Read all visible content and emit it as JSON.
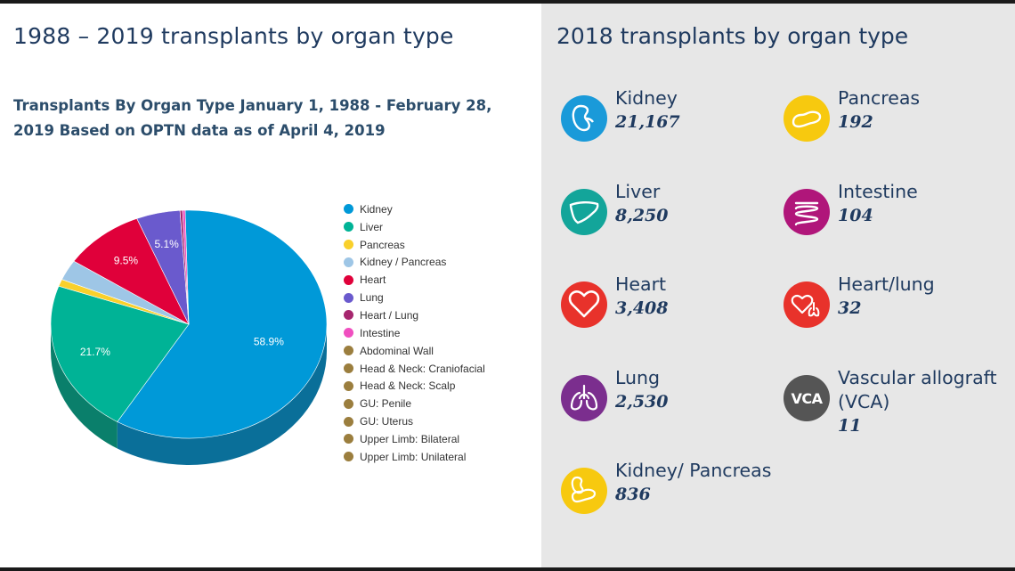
{
  "left": {
    "title": "1988 – 2019 transplants by organ type",
    "chart_title": "Transplants By Organ Type January 1, 1988 - February 28, 2019 Based on OPTN data as of April 4, 2019"
  },
  "chart_data": {
    "type": "pie",
    "title": "Transplants By Organ Type January 1, 1988 - February 28, 2019 Based on OPTN data as of April 4, 2019",
    "legend_position": "right",
    "slices": [
      {
        "label": "Kidney",
        "value": 58.9,
        "color": "#0099d8",
        "side": "#0a6f99",
        "data_label": "58.9%"
      },
      {
        "label": "Liver",
        "value": 21.7,
        "color": "#00b396",
        "side": "#0a7f6b",
        "data_label": "21.7%"
      },
      {
        "label": "Pancreas",
        "value": 1.0,
        "color": "#f9d02b",
        "side": "#b8981c",
        "data_label": ""
      },
      {
        "label": "Kidney / Pancreas",
        "value": 2.9,
        "color": "#9ec6e6",
        "side": "#7290a8",
        "data_label": ""
      },
      {
        "label": "Heart",
        "value": 9.5,
        "color": "#e0003a",
        "side": "#a1002a",
        "data_label": "9.5%"
      },
      {
        "label": "Lung",
        "value": 5.1,
        "color": "#6a5acd",
        "side": "#4b3f93",
        "data_label": "5.1%"
      },
      {
        "label": "Heart / Lung",
        "value": 0.3,
        "color": "#a6266e",
        "side": "#761b4e",
        "data_label": ""
      },
      {
        "label": "Intestine",
        "value": 0.3,
        "color": "#f04fc0",
        "side": "#aa3888",
        "data_label": ""
      },
      {
        "label": "Abdominal Wall",
        "value": 0,
        "color": "#9b7e3e",
        "side": "#6e5a2c",
        "data_label": ""
      },
      {
        "label": "Head & Neck: Craniofacial",
        "value": 0,
        "color": "#9b7e3e",
        "side": "#6e5a2c",
        "data_label": ""
      },
      {
        "label": "Head & Neck: Scalp",
        "value": 0,
        "color": "#9b7e3e",
        "side": "#6e5a2c",
        "data_label": ""
      },
      {
        "label": "GU: Penile",
        "value": 0,
        "color": "#9b7e3e",
        "side": "#6e5a2c",
        "data_label": ""
      },
      {
        "label": "GU: Uterus",
        "value": 0,
        "color": "#9b7e3e",
        "side": "#6e5a2c",
        "data_label": ""
      },
      {
        "label": "Upper Limb: Bilateral",
        "value": 0,
        "color": "#9b7e3e",
        "side": "#6e5a2c",
        "data_label": ""
      },
      {
        "label": "Upper Limb: Unilateral",
        "value": 0,
        "color": "#9b7e3e",
        "side": "#6e5a2c",
        "data_label": ""
      }
    ]
  },
  "right": {
    "title": "2018 transplants by organ type",
    "stats": [
      {
        "name": "Kidney",
        "value": "21,167",
        "icon": "kidney-icon",
        "color": "#1a9ad9"
      },
      {
        "name": "Pancreas",
        "value": "192",
        "icon": "pancreas-icon",
        "color": "#f7c90f"
      },
      {
        "name": "Liver",
        "value": "8,250",
        "icon": "liver-icon",
        "color": "#13a59a"
      },
      {
        "name": "Intestine",
        "value": "104",
        "icon": "intestine-icon",
        "color": "#b0167a"
      },
      {
        "name": "Heart",
        "value": "3,408",
        "icon": "heart-icon",
        "color": "#e8322b"
      },
      {
        "name": "Heart/lung",
        "value": "32",
        "icon": "heart-lung-icon",
        "color": "#e8322b"
      },
      {
        "name": "Lung",
        "value": "2,530",
        "icon": "lung-icon",
        "color": "#7b2e8e"
      },
      {
        "name": "Vascular allograft (VCA)",
        "value": "11",
        "icon": "vca-icon",
        "icon_text": "VCA",
        "color": "#555555"
      },
      {
        "name": "Kidney/ Pancreas",
        "value": "836",
        "icon": "kidney-pancreas-icon",
        "color": "#f7c90f"
      }
    ]
  }
}
